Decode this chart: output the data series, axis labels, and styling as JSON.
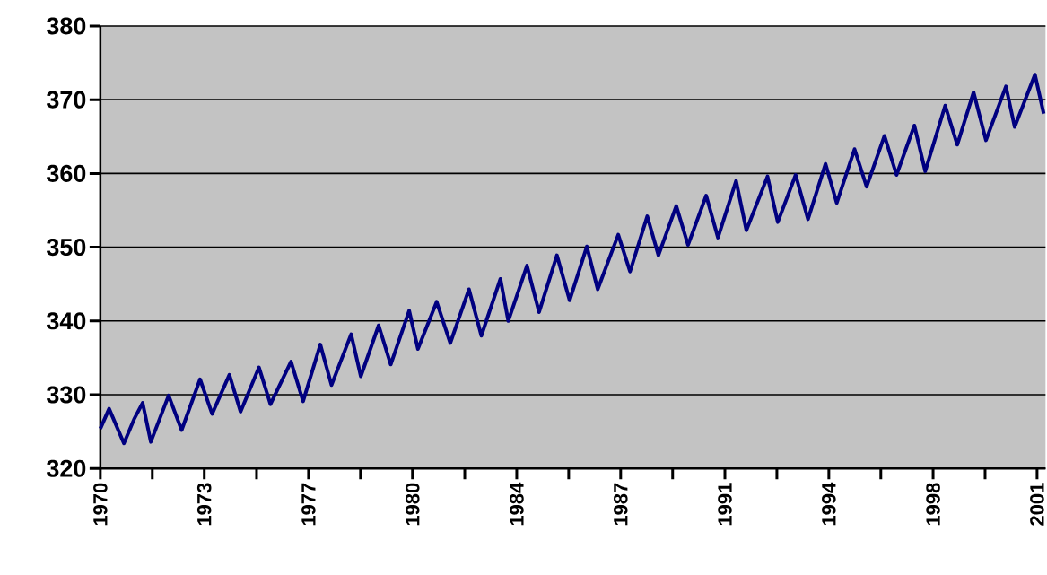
{
  "chart_data": {
    "type": "line",
    "x": [
      1970.0,
      1970.29,
      1970.78,
      1971.13,
      1971.4,
      1971.67,
      1972.26,
      1972.69,
      1973.3,
      1973.7,
      1974.27,
      1974.64,
      1975.25,
      1975.63,
      1976.31,
      1976.71,
      1977.28,
      1977.65,
      1978.3,
      1978.62,
      1979.21,
      1979.61,
      1980.22,
      1980.51,
      1981.13,
      1981.58,
      1982.2,
      1982.61,
      1983.24,
      1983.5,
      1984.12,
      1984.52,
      1985.11,
      1985.53,
      1986.1,
      1986.46,
      1987.14,
      1987.53,
      1988.1,
      1988.47,
      1989.06,
      1989.45,
      1990.05,
      1990.44,
      1991.04,
      1991.38,
      1992.08,
      1992.42,
      1993.01,
      1993.42,
      1994.0,
      1994.37,
      1994.96,
      1995.36,
      1995.95,
      1996.35,
      1996.94,
      1997.3,
      1997.96,
      1998.36,
      1998.9,
      1999.31,
      1999.97,
      2000.26,
      2000.93,
      2001.22
    ],
    "series": [
      {
        "color": "#000080",
        "values": [
          325.4,
          328.1,
          323.4,
          326.8,
          328.9,
          323.6,
          329.9,
          325.2,
          332.1,
          327.4,
          332.7,
          327.7,
          333.7,
          328.7,
          334.5,
          329.1,
          336.8,
          331.3,
          338.2,
          332.5,
          339.4,
          334.1,
          341.4,
          336.2,
          342.6,
          337.0,
          344.3,
          338.0,
          345.7,
          340.0,
          347.5,
          341.2,
          348.9,
          342.8,
          350.1,
          344.3,
          351.7,
          346.7,
          354.2,
          348.9,
          355.6,
          350.3,
          357.0,
          351.3,
          359.0,
          352.3,
          359.6,
          353.4,
          359.8,
          353.8,
          361.3,
          356.0,
          363.3,
          358.2,
          365.1,
          359.8,
          366.5,
          360.3,
          369.2,
          363.9,
          371.0,
          364.5,
          371.8,
          366.3,
          373.4,
          368.1
        ]
      }
    ],
    "xlim": [
      1970,
      2001.28
    ],
    "xticks": [
      {
        "value": 1970,
        "label": "1970"
      },
      {
        "value": 1971.72,
        "label": null
      },
      {
        "value": 1973.44,
        "label": "1973"
      },
      {
        "value": 1975.17,
        "label": null
      },
      {
        "value": 1976.89,
        "label": "1977"
      },
      {
        "value": 1978.61,
        "label": null
      },
      {
        "value": 1980.33,
        "label": "1980"
      },
      {
        "value": 1982.06,
        "label": null
      },
      {
        "value": 1983.78,
        "label": "1984"
      },
      {
        "value": 1985.5,
        "label": null
      },
      {
        "value": 1987.22,
        "label": "1987"
      },
      {
        "value": 1988.94,
        "label": null
      },
      {
        "value": 1990.67,
        "label": "1991"
      },
      {
        "value": 1992.39,
        "label": null
      },
      {
        "value": 1994.11,
        "label": "1994"
      },
      {
        "value": 1995.83,
        "label": null
      },
      {
        "value": 1997.56,
        "label": "1998"
      },
      {
        "value": 1999.28,
        "label": null
      },
      {
        "value": 2001.0,
        "label": "2001"
      }
    ],
    "ylim": [
      320,
      380
    ],
    "yticks": [
      320,
      330,
      340,
      350,
      360,
      370,
      380
    ],
    "grid": "y"
  }
}
